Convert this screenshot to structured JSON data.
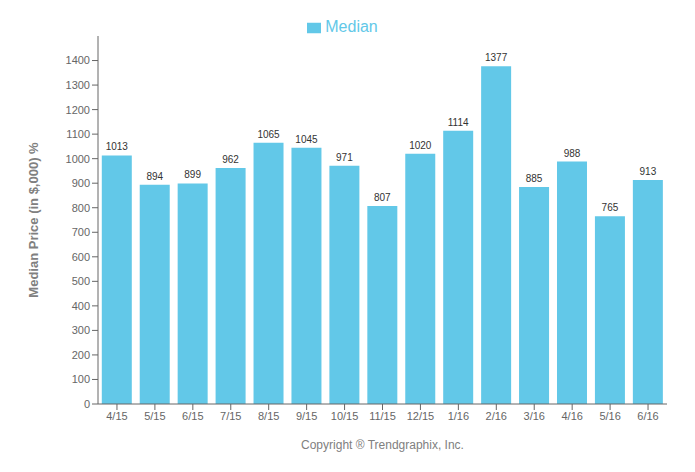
{
  "chart_data": {
    "type": "bar",
    "categories": [
      "4/15",
      "5/15",
      "6/15",
      "7/15",
      "8/15",
      "9/15",
      "10/15",
      "11/15",
      "12/15",
      "1/16",
      "2/16",
      "3/16",
      "4/16",
      "5/16",
      "6/16"
    ],
    "series": [
      {
        "name": "Median",
        "color": "#62C8E8",
        "values": [
          1013,
          894,
          899,
          962,
          1065,
          1045,
          971,
          807,
          1020,
          1114,
          1377,
          885,
          988,
          765,
          913
        ]
      }
    ],
    "ylabel": "Median Price (in $,000) %",
    "xlabel": "Copyright ® Trendgraphix, Inc.",
    "ylim": [
      0,
      1500
    ],
    "yticks": [
      0,
      100,
      200,
      300,
      400,
      500,
      600,
      700,
      800,
      900,
      1000,
      1100,
      1200,
      1300,
      1400
    ],
    "grid": false,
    "legend": "top",
    "data_labels": true
  }
}
